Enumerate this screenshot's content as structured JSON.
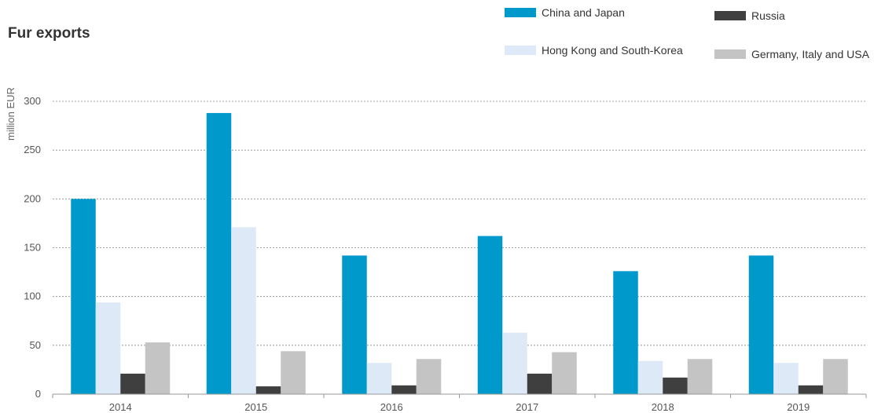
{
  "chart_data": {
    "type": "bar",
    "title": "Fur exports",
    "ylabel": "million EUR",
    "xlabel": "",
    "ylim": [
      0,
      300
    ],
    "yticks": [
      0,
      50,
      100,
      150,
      200,
      250,
      300
    ],
    "grid": true,
    "legend_position": "top-right",
    "categories": [
      "2014",
      "2015",
      "2016",
      "2017",
      "2018",
      "2019"
    ],
    "series": [
      {
        "name": "China and Japan",
        "color": "#0099cc",
        "values": [
          200,
          288,
          142,
          162,
          126,
          142
        ]
      },
      {
        "name": "Hong Kong and South-Korea",
        "color": "#dde9f6",
        "values": [
          94,
          171,
          32,
          63,
          34,
          32
        ]
      },
      {
        "name": "Russia",
        "color": "#3f3f3f",
        "values": [
          21,
          8,
          9,
          21,
          17,
          9
        ]
      },
      {
        "name": "Germany, Italy and USA",
        "color": "#c4c4c4",
        "values": [
          53,
          44,
          36,
          43,
          36,
          36
        ]
      }
    ]
  }
}
